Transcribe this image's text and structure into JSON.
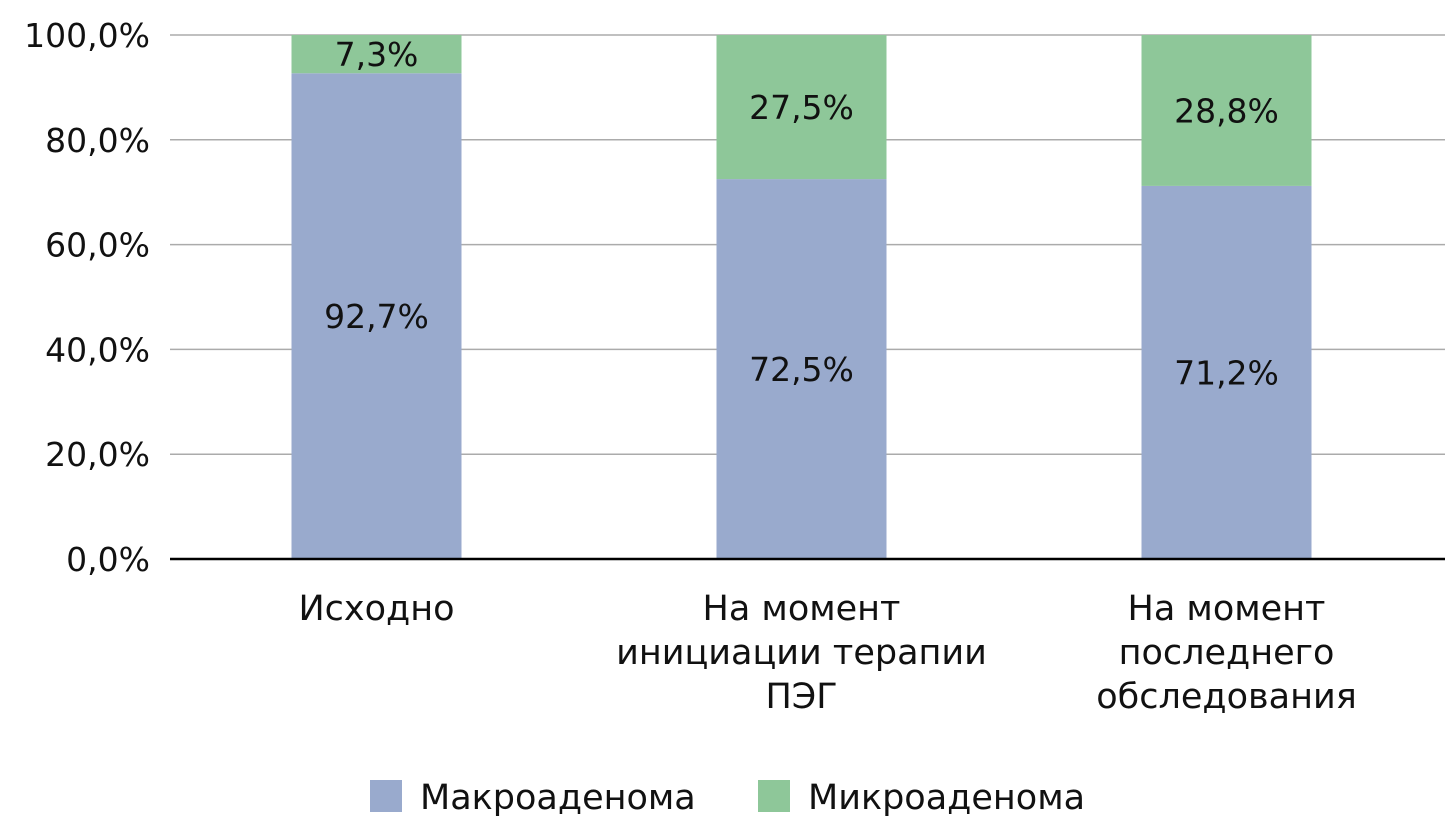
{
  "chart_data": {
    "type": "bar",
    "stacked": true,
    "title": "",
    "xlabel": "",
    "ylabel": "",
    "ylim": [
      0,
      100
    ],
    "yticks": [
      "0,0%",
      "20,0%",
      "40,0%",
      "60,0%",
      "80,0%",
      "100,0%"
    ],
    "ytick_values": [
      0,
      20,
      40,
      60,
      80,
      100
    ],
    "grid": true,
    "legend_position": "bottom-center",
    "categories": [
      [
        "Исходно"
      ],
      [
        "На момент",
        "инициации терапии",
        "ПЭГ"
      ],
      [
        "На момент",
        "последнего",
        "обследования"
      ]
    ],
    "series": [
      {
        "name": "Макроаденома",
        "color": "#99AACD",
        "values": [
          92.7,
          72.5,
          71.2
        ],
        "labels": [
          "92,7%",
          "72,5%",
          "71,2%"
        ]
      },
      {
        "name": "Микроаденома",
        "color": "#8EC799",
        "values": [
          7.3,
          27.5,
          28.8
        ],
        "labels": [
          "7,3%",
          "27,5%",
          "28,8%"
        ]
      }
    ]
  }
}
